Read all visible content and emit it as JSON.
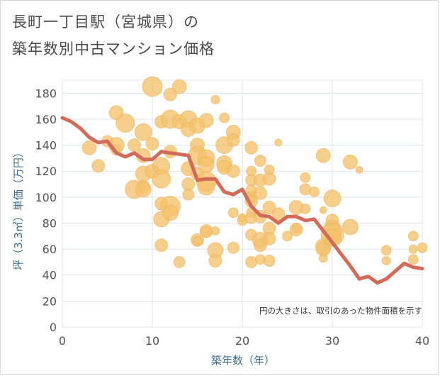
{
  "title_line1": "長町一丁目駅（宮城県）の",
  "title_line2": "築年数別中古マンション価格",
  "colors": {
    "bubble_fill": "#f5c26b",
    "bubble_stroke": "#e9b25a",
    "line": "#d36b5a",
    "grid": "#dfe3e8",
    "axis_text": "#555555",
    "axis_label": "#3f6e8c"
  },
  "chart_data": {
    "type": "scatter",
    "xlabel": "築年数（年）",
    "ylabel": "坪（3.3㎡）単価（万円）",
    "xlim": [
      0,
      40
    ],
    "ylim": [
      0,
      190
    ],
    "x_ticks": [
      0,
      10,
      20,
      30,
      40
    ],
    "y_ticks": [
      0,
      20,
      40,
      60,
      80,
      100,
      120,
      140,
      160,
      180
    ],
    "grid": true,
    "annotation": "円の大きさは、取引のあった物件面積を示す",
    "bubbles": [
      [
        3,
        138,
        10
      ],
      [
        4,
        124,
        9
      ],
      [
        5,
        143,
        8
      ],
      [
        6,
        165,
        10
      ],
      [
        6,
        140,
        11
      ],
      [
        6,
        136,
        7
      ],
      [
        7,
        157,
        13
      ],
      [
        8,
        140,
        9
      ],
      [
        8,
        106,
        13
      ],
      [
        9,
        150,
        12
      ],
      [
        9,
        132,
        10
      ],
      [
        9,
        118,
        11
      ],
      [
        9,
        108,
        9
      ],
      [
        9,
        106,
        11
      ],
      [
        10,
        185,
        14
      ],
      [
        10,
        141,
        9
      ],
      [
        10,
        120,
        10
      ],
      [
        11,
        158,
        9
      ],
      [
        11,
        124,
        12
      ],
      [
        11,
        114,
        13
      ],
      [
        11,
        95,
        9
      ],
      [
        11,
        83,
        11
      ],
      [
        11,
        63,
        9
      ],
      [
        12,
        179,
        9
      ],
      [
        12,
        160,
        13
      ],
      [
        12,
        135,
        9
      ],
      [
        12,
        93,
        14
      ],
      [
        12,
        88,
        11
      ],
      [
        13,
        185,
        10
      ],
      [
        13,
        158,
        10
      ],
      [
        13,
        50,
        8
      ],
      [
        14,
        160,
        12
      ],
      [
        14,
        152,
        10
      ],
      [
        14,
        122,
        10
      ],
      [
        14,
        110,
        9
      ],
      [
        14,
        102,
        8
      ],
      [
        15,
        155,
        11
      ],
      [
        15,
        140,
        10
      ],
      [
        15,
        132,
        13
      ],
      [
        15,
        118,
        9
      ],
      [
        15,
        67,
        9
      ],
      [
        15,
        66,
        7
      ],
      [
        16,
        159,
        10
      ],
      [
        16,
        130,
        12
      ],
      [
        16,
        125,
        11
      ],
      [
        16,
        112,
        14
      ],
      [
        16,
        108,
        12
      ],
      [
        16,
        74,
        9
      ],
      [
        16,
        73,
        8
      ],
      [
        17,
        175,
        6
      ],
      [
        17,
        74,
        6
      ],
      [
        17,
        59,
        11
      ],
      [
        17,
        51,
        9
      ],
      [
        18,
        161,
        7
      ],
      [
        18,
        140,
        12
      ],
      [
        18,
        126,
        11
      ],
      [
        18,
        123,
        10
      ],
      [
        19,
        150,
        10
      ],
      [
        19,
        144,
        9
      ],
      [
        19,
        120,
        9
      ],
      [
        19,
        88,
        7
      ],
      [
        19,
        61,
        8
      ],
      [
        20,
        84,
        6
      ],
      [
        20,
        82,
        7
      ],
      [
        21,
        138,
        9
      ],
      [
        21,
        120,
        7
      ],
      [
        21,
        113,
        8
      ],
      [
        21,
        105,
        8
      ],
      [
        21,
        100,
        8
      ],
      [
        21,
        97,
        9
      ],
      [
        21,
        88,
        7
      ],
      [
        21,
        84,
        8
      ],
      [
        21,
        71,
        8
      ],
      [
        21,
        50,
        8
      ],
      [
        22,
        128,
        8
      ],
      [
        22,
        113,
        9
      ],
      [
        22,
        103,
        9
      ],
      [
        22,
        85,
        9
      ],
      [
        22,
        67,
        11
      ],
      [
        22,
        63,
        9
      ],
      [
        22,
        52,
        7
      ],
      [
        23,
        121,
        7
      ],
      [
        23,
        114,
        9
      ],
      [
        23,
        92,
        9
      ],
      [
        23,
        76,
        9
      ],
      [
        23,
        68,
        9
      ],
      [
        23,
        51,
        8
      ],
      [
        24,
        142,
        5
      ],
      [
        24,
        87,
        9
      ],
      [
        25,
        70,
        7
      ],
      [
        26,
        92,
        10
      ],
      [
        26,
        76,
        7
      ],
      [
        26,
        75,
        9
      ],
      [
        27,
        115,
        7
      ],
      [
        27,
        106,
        8
      ],
      [
        27,
        91,
        7
      ],
      [
        28,
        104,
        7
      ],
      [
        29,
        132,
        10
      ],
      [
        29,
        90,
        5
      ],
      [
        29,
        62,
        11
      ],
      [
        29,
        60,
        10
      ],
      [
        29,
        53,
        6
      ],
      [
        30,
        99,
        12
      ],
      [
        30,
        82,
        9
      ],
      [
        30,
        75,
        13
      ],
      [
        30,
        71,
        16
      ],
      [
        30,
        69,
        12
      ],
      [
        32,
        127,
        10
      ],
      [
        32,
        77,
        11
      ],
      [
        33,
        121,
        5
      ],
      [
        36,
        59,
        7
      ],
      [
        36,
        51,
        6
      ],
      [
        39,
        70,
        7
      ],
      [
        39,
        60,
        6
      ],
      [
        39,
        52,
        7
      ],
      [
        40,
        61,
        7
      ]
    ],
    "trend_line": [
      [
        0,
        161
      ],
      [
        1,
        158
      ],
      [
        2,
        153
      ],
      [
        3,
        146
      ],
      [
        4,
        142
      ],
      [
        5,
        143
      ],
      [
        6,
        134
      ],
      [
        7,
        131
      ],
      [
        8,
        134
      ],
      [
        9,
        129
      ],
      [
        10,
        129
      ],
      [
        11,
        135
      ],
      [
        12,
        134
      ],
      [
        13,
        133
      ],
      [
        14,
        132
      ],
      [
        15,
        113
      ],
      [
        16,
        114
      ],
      [
        17,
        114
      ],
      [
        18,
        104
      ],
      [
        19,
        102
      ],
      [
        20,
        106
      ],
      [
        21,
        93
      ],
      [
        22,
        86
      ],
      [
        23,
        85
      ],
      [
        24,
        80
      ],
      [
        25,
        85
      ],
      [
        26,
        85
      ],
      [
        27,
        82
      ],
      [
        28,
        83
      ],
      [
        29,
        74
      ],
      [
        30,
        65
      ],
      [
        31,
        56
      ],
      [
        32,
        47
      ],
      [
        33,
        37
      ],
      [
        34,
        39
      ],
      [
        35,
        34
      ],
      [
        36,
        37
      ],
      [
        37,
        43
      ],
      [
        38,
        49
      ],
      [
        39,
        46
      ],
      [
        40,
        45
      ]
    ]
  }
}
